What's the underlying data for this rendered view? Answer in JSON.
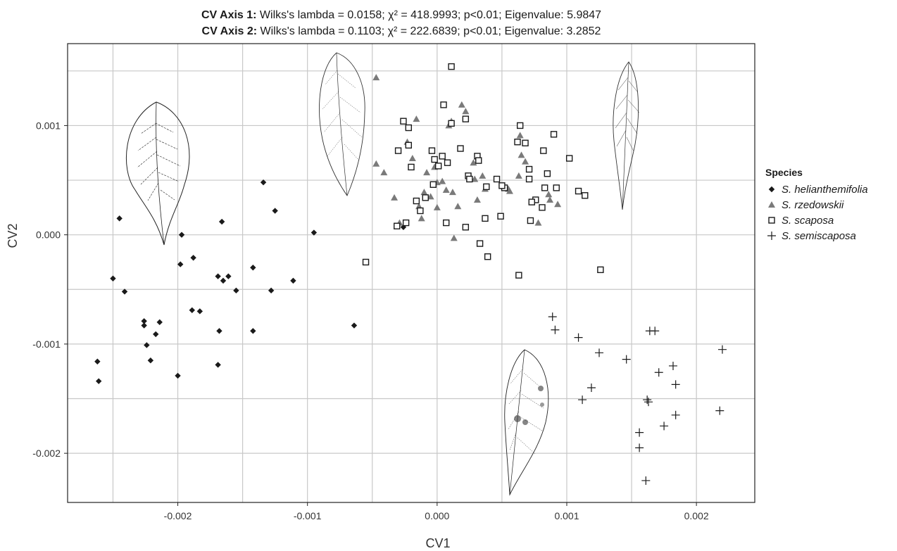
{
  "header": {
    "line1_bold": "CV Axis 1:",
    "line1_rest": " Wilks's lambda = 0.0158; χ² = 418.9993; p<0.01; Eigenvalue: 5.9847",
    "line2_bold": "CV Axis 2:",
    "line2_rest": " Wilks's lambda = 0.1103; χ² = 222.6839; p<0.01; Eigenvalue: 3.2852"
  },
  "chart_data": {
    "type": "scatter",
    "xlabel": "CV1",
    "ylabel": "CV2",
    "xlim": [
      -0.00285,
      0.00245
    ],
    "ylim": [
      -0.00245,
      0.00175
    ],
    "x_ticks": [
      -0.002,
      -0.001,
      0.0,
      0.001,
      0.002
    ],
    "x_tick_labels": [
      "-0.002",
      "-0.001",
      "0.000",
      "0.001",
      "0.002"
    ],
    "y_ticks": [
      0.001,
      0.0,
      -0.001,
      -0.002
    ],
    "y_tick_labels": [
      "0.001",
      "0.000",
      "-0.001",
      "-0.002"
    ],
    "grid": true,
    "legend": {
      "title": "Species",
      "position": "right"
    },
    "series": [
      {
        "name": "S. helianthemifolia",
        "marker": "diamond",
        "color": "#1a1a1a",
        "points": [
          [
            -0.00262,
            -0.00116
          ],
          [
            -0.00261,
            -0.00134
          ],
          [
            -0.00245,
            0.00015
          ],
          [
            -0.0025,
            -0.0004
          ],
          [
            -0.00241,
            -0.00052
          ],
          [
            -0.00226,
            -0.00079
          ],
          [
            -0.00226,
            -0.00083
          ],
          [
            -0.00224,
            -0.00101
          ],
          [
            -0.00221,
            -0.00115
          ],
          [
            -0.00217,
            -0.00091
          ],
          [
            -0.00214,
            -0.0008
          ],
          [
            -0.002,
            -0.00129
          ],
          [
            -0.00197,
            0.0
          ],
          [
            -0.00198,
            -0.00027
          ],
          [
            -0.00189,
            -0.00069
          ],
          [
            -0.00188,
            -0.00021
          ],
          [
            -0.00183,
            -0.0007
          ],
          [
            -0.00169,
            -0.00038
          ],
          [
            -0.00168,
            -0.00088
          ],
          [
            -0.00169,
            -0.00119
          ],
          [
            -0.00166,
            0.00012
          ],
          [
            -0.00165,
            -0.00042
          ],
          [
            -0.00161,
            -0.00038
          ],
          [
            -0.00155,
            -0.00051
          ],
          [
            -0.00142,
            -0.0003
          ],
          [
            -0.00142,
            -0.00088
          ],
          [
            -0.00134,
            0.00048
          ],
          [
            -0.00128,
            -0.00051
          ],
          [
            -0.00125,
            0.00022
          ],
          [
            -0.00111,
            -0.00042
          ],
          [
            -0.00095,
            2e-05
          ],
          [
            -0.00064,
            -0.00083
          ],
          [
            -0.00026,
            7e-05
          ]
        ]
      },
      {
        "name": "S. rzedowskii",
        "marker": "triangle",
        "color": "#7a7a7a",
        "points": [
          [
            -0.00047,
            0.00144
          ],
          [
            -0.00047,
            0.00065
          ],
          [
            -0.00041,
            0.00057
          ],
          [
            -0.00033,
            0.00034
          ],
          [
            -0.00029,
            0.00011
          ],
          [
            -0.00023,
            0.00085
          ],
          [
            -0.0002,
            0.00062
          ],
          [
            -0.00019,
            0.0007
          ],
          [
            -0.00016,
            0.00106
          ],
          [
            -0.00014,
            0.00026
          ],
          [
            -0.0001,
            0.00039
          ],
          [
            -8e-05,
            0.00057
          ],
          [
            -5e-05,
            0.00035
          ],
          [
            -2e-05,
            0.00062
          ],
          [
            0.0,
            0.00025
          ],
          [
            0.0,
            0.00048
          ],
          [
            4e-05,
            0.00049
          ],
          [
            7e-05,
            0.00041
          ],
          [
            9e-05,
            0.001
          ],
          [
            0.00011,
            0.00104
          ],
          [
            0.00012,
            0.00039
          ],
          [
            0.00016,
            0.00026
          ],
          [
            0.00019,
            0.00119
          ],
          [
            0.00022,
            0.00113
          ],
          [
            0.00028,
            0.00066
          ],
          [
            0.00029,
            0.00051
          ],
          [
            0.00031,
            0.00032
          ],
          [
            0.00035,
            0.00054
          ],
          [
            0.00037,
            0.00042
          ],
          [
            0.00055,
            0.00042
          ],
          [
            0.00056,
            0.0004
          ],
          [
            0.00063,
            0.00054
          ],
          [
            0.00064,
            0.00091
          ],
          [
            0.00065,
            0.00073
          ],
          [
            0.00068,
            0.00067
          ],
          [
            0.00078,
            0.00011
          ],
          [
            0.00086,
            0.00037
          ],
          [
            0.00087,
            0.00032
          ],
          [
            0.00093,
            0.00028
          ],
          [
            -0.00012,
            0.00015
          ],
          [
            0.00013,
            -3e-05
          ]
        ]
      },
      {
        "name": "S. scaposa",
        "marker": "square",
        "color": "#1a1a1a",
        "points": [
          [
            0.00011,
            0.00154
          ],
          [
            5e-05,
            0.00119
          ],
          [
            0.00011,
            0.00102
          ],
          [
            0.00022,
            0.00106
          ],
          [
            0.00018,
            0.00079
          ],
          [
            -0.00026,
            0.00104
          ],
          [
            -0.00022,
            0.00098
          ],
          [
            -0.0003,
            0.00077
          ],
          [
            -0.00022,
            0.00082
          ],
          [
            -0.0002,
            0.00062
          ],
          [
            -4e-05,
            0.00077
          ],
          [
            -2e-05,
            0.00069
          ],
          [
            4e-05,
            0.00072
          ],
          [
            1e-05,
            0.00063
          ],
          [
            8e-05,
            0.00066
          ],
          [
            0.00031,
            0.00072
          ],
          [
            0.00032,
            0.00068
          ],
          [
            0.00024,
            0.00054
          ],
          [
            0.00025,
            0.00051
          ],
          [
            0.00038,
            0.00044
          ],
          [
            0.00046,
            0.00051
          ],
          [
            0.00052,
            0.00043
          ],
          [
            0.0005,
            0.00045
          ],
          [
            -3e-05,
            0.00046
          ],
          [
            -9e-05,
            0.00034
          ],
          [
            -0.00016,
            0.00031
          ],
          [
            -0.00013,
            0.00022
          ],
          [
            7e-05,
            0.00011
          ],
          [
            0.00022,
            7e-05
          ],
          [
            0.00033,
            -8e-05
          ],
          [
            0.00037,
            0.00015
          ],
          [
            0.00049,
            0.00017
          ],
          [
            0.00039,
            -0.0002
          ],
          [
            -0.00031,
            8e-05
          ],
          [
            -0.00024,
            0.00011
          ],
          [
            -0.00055,
            -0.00025
          ],
          [
            0.00064,
            0.001
          ],
          [
            0.00062,
            0.00085
          ],
          [
            0.00068,
            0.00084
          ],
          [
            0.00082,
            0.00077
          ],
          [
            0.00071,
            0.0006
          ],
          [
            0.00085,
            0.00056
          ],
          [
            0.00071,
            0.00051
          ],
          [
            0.00083,
            0.00043
          ],
          [
            0.00092,
            0.00043
          ],
          [
            0.00076,
            0.00032
          ],
          [
            0.00081,
            0.00025
          ],
          [
            0.00073,
            0.0003
          ],
          [
            0.00072,
            0.00013
          ],
          [
            0.00063,
            -0.00037
          ],
          [
            0.0009,
            0.00092
          ],
          [
            0.00102,
            0.0007
          ],
          [
            0.00109,
            0.0004
          ],
          [
            0.00114,
            0.00036
          ],
          [
            0.00126,
            -0.00032
          ]
        ]
      },
      {
        "name": "S. semiscaposa",
        "marker": "plus",
        "color": "#1a1a1a",
        "points": [
          [
            0.00089,
            -0.00075
          ],
          [
            0.00091,
            -0.00087
          ],
          [
            0.00109,
            -0.00094
          ],
          [
            0.00112,
            -0.00151
          ],
          [
            0.00119,
            -0.0014
          ],
          [
            0.00125,
            -0.00108
          ],
          [
            0.00146,
            -0.00114
          ],
          [
            0.00156,
            -0.00181
          ],
          [
            0.00156,
            -0.00195
          ],
          [
            0.00161,
            -0.00225
          ],
          [
            0.00162,
            -0.00151
          ],
          [
            0.00164,
            -0.00088
          ],
          [
            0.00168,
            -0.00088
          ],
          [
            0.00171,
            -0.00126
          ],
          [
            0.00175,
            -0.00175
          ],
          [
            0.00182,
            -0.0012
          ],
          [
            0.00184,
            -0.00137
          ],
          [
            0.00184,
            -0.00165
          ],
          [
            0.00218,
            -0.00161
          ],
          [
            0.0022,
            -0.00105
          ],
          [
            0.00163,
            -0.00153
          ]
        ]
      }
    ]
  }
}
